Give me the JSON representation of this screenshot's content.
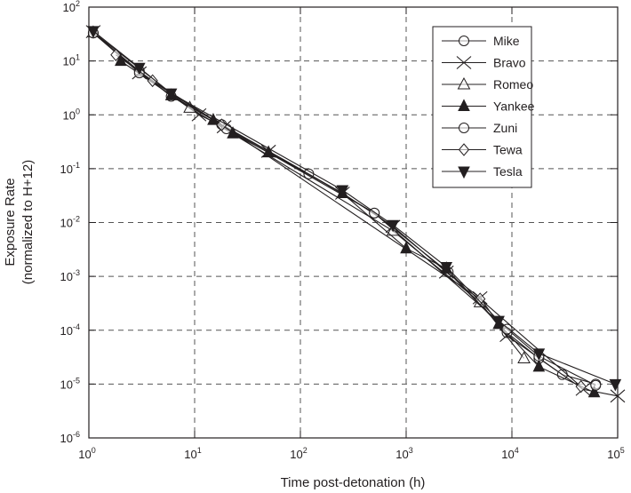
{
  "chart_data": {
    "type": "line",
    "title": "",
    "xlabel": "Time post-detonation (h)",
    "ylabel": "Exposure Rate",
    "ylabel_sub": "(normalized to H+12)",
    "xscale": "log",
    "yscale": "log",
    "xlim": [
      1,
      100000
    ],
    "ylim": [
      1e-06,
      100
    ],
    "grid": true,
    "legend_position": "top-right",
    "x_ticks": [
      {
        "base": "10",
        "exp": "0"
      },
      {
        "base": "10",
        "exp": "1"
      },
      {
        "base": "10",
        "exp": "2"
      },
      {
        "base": "10",
        "exp": "3"
      },
      {
        "base": "10",
        "exp": "4"
      },
      {
        "base": "10",
        "exp": "5"
      }
    ],
    "y_ticks": [
      {
        "base": "10",
        "exp": "-6"
      },
      {
        "base": "10",
        "exp": "-5"
      },
      {
        "base": "10",
        "exp": "-4"
      },
      {
        "base": "10",
        "exp": "-3"
      },
      {
        "base": "10",
        "exp": "-2"
      },
      {
        "base": "10",
        "exp": "-1"
      },
      {
        "base": "10",
        "exp": "0"
      },
      {
        "base": "10",
        "exp": "1"
      },
      {
        "base": "10",
        "exp": "2"
      }
    ],
    "series": [
      {
        "name": "Mike",
        "marker": "circle-open",
        "points": [
          [
            1.1,
            33
          ],
          [
            3,
            6.5
          ],
          [
            6,
            2.2
          ],
          [
            18,
            0.66
          ],
          [
            120,
            0.08
          ],
          [
            500,
            0.015
          ],
          [
            2500,
            0.0012
          ],
          [
            9000,
            9e-05
          ],
          [
            18000,
            3e-05
          ],
          [
            30000,
            1.5e-05
          ],
          [
            62000,
            1e-05
          ]
        ]
      },
      {
        "name": "Bravo",
        "marker": "x",
        "points": [
          [
            1.1,
            35
          ],
          [
            3,
            6
          ],
          [
            11,
            1.0
          ],
          [
            19,
            0.6
          ],
          [
            50,
            0.21
          ],
          [
            250,
            0.035
          ],
          [
            750,
            0.0085
          ],
          [
            2400,
            0.0012
          ],
          [
            5000,
            0.0004
          ],
          [
            9000,
            8e-05
          ],
          [
            47000,
            8e-06
          ],
          [
            100000,
            6e-06
          ]
        ]
      },
      {
        "name": "Romeo",
        "marker": "triangle-open",
        "points": [
          [
            1.1,
            34
          ],
          [
            9,
            1.35
          ],
          [
            750,
            0.007
          ],
          [
            5000,
            0.00033
          ],
          [
            13000,
            3e-05
          ]
        ]
      },
      {
        "name": "Yankee",
        "marker": "triangle-filled",
        "points": [
          [
            2,
            10
          ],
          [
            6,
            2.3
          ],
          [
            15,
            0.8
          ],
          [
            23,
            0.45
          ],
          [
            50,
            0.2
          ],
          [
            250,
            0.035
          ],
          [
            1000,
            0.0033
          ],
          [
            2400,
            0.0014
          ],
          [
            7500,
            0.00013
          ],
          [
            18000,
            2.1e-05
          ],
          [
            60000,
            7e-06
          ]
        ]
      },
      {
        "name": "Zuni",
        "marker": "circle-open",
        "points": [
          [
            1.1,
            33
          ],
          [
            3,
            6
          ],
          [
            20,
            0.55
          ],
          [
            500,
            0.015
          ],
          [
            9000,
            0.000105
          ],
          [
            18000,
            3.3e-05
          ],
          [
            62000,
            9.5e-06
          ]
        ]
      },
      {
        "name": "Tewa",
        "marker": "diamond-open",
        "points": [
          [
            1.8,
            13
          ],
          [
            4,
            4.3
          ],
          [
            18,
            0.65
          ],
          [
            5000,
            0.00038
          ],
          [
            45000,
            9e-06
          ]
        ]
      },
      {
        "name": "Tesla",
        "marker": "triangle-down-filled",
        "points": [
          [
            1.1,
            36
          ],
          [
            3,
            7.5
          ],
          [
            6,
            2.5
          ],
          [
            250,
            0.04
          ],
          [
            750,
            0.009
          ],
          [
            2400,
            0.0015
          ],
          [
            7500,
            0.00015
          ],
          [
            18000,
            3.7e-05
          ],
          [
            95000,
            1e-05
          ]
        ]
      }
    ]
  }
}
